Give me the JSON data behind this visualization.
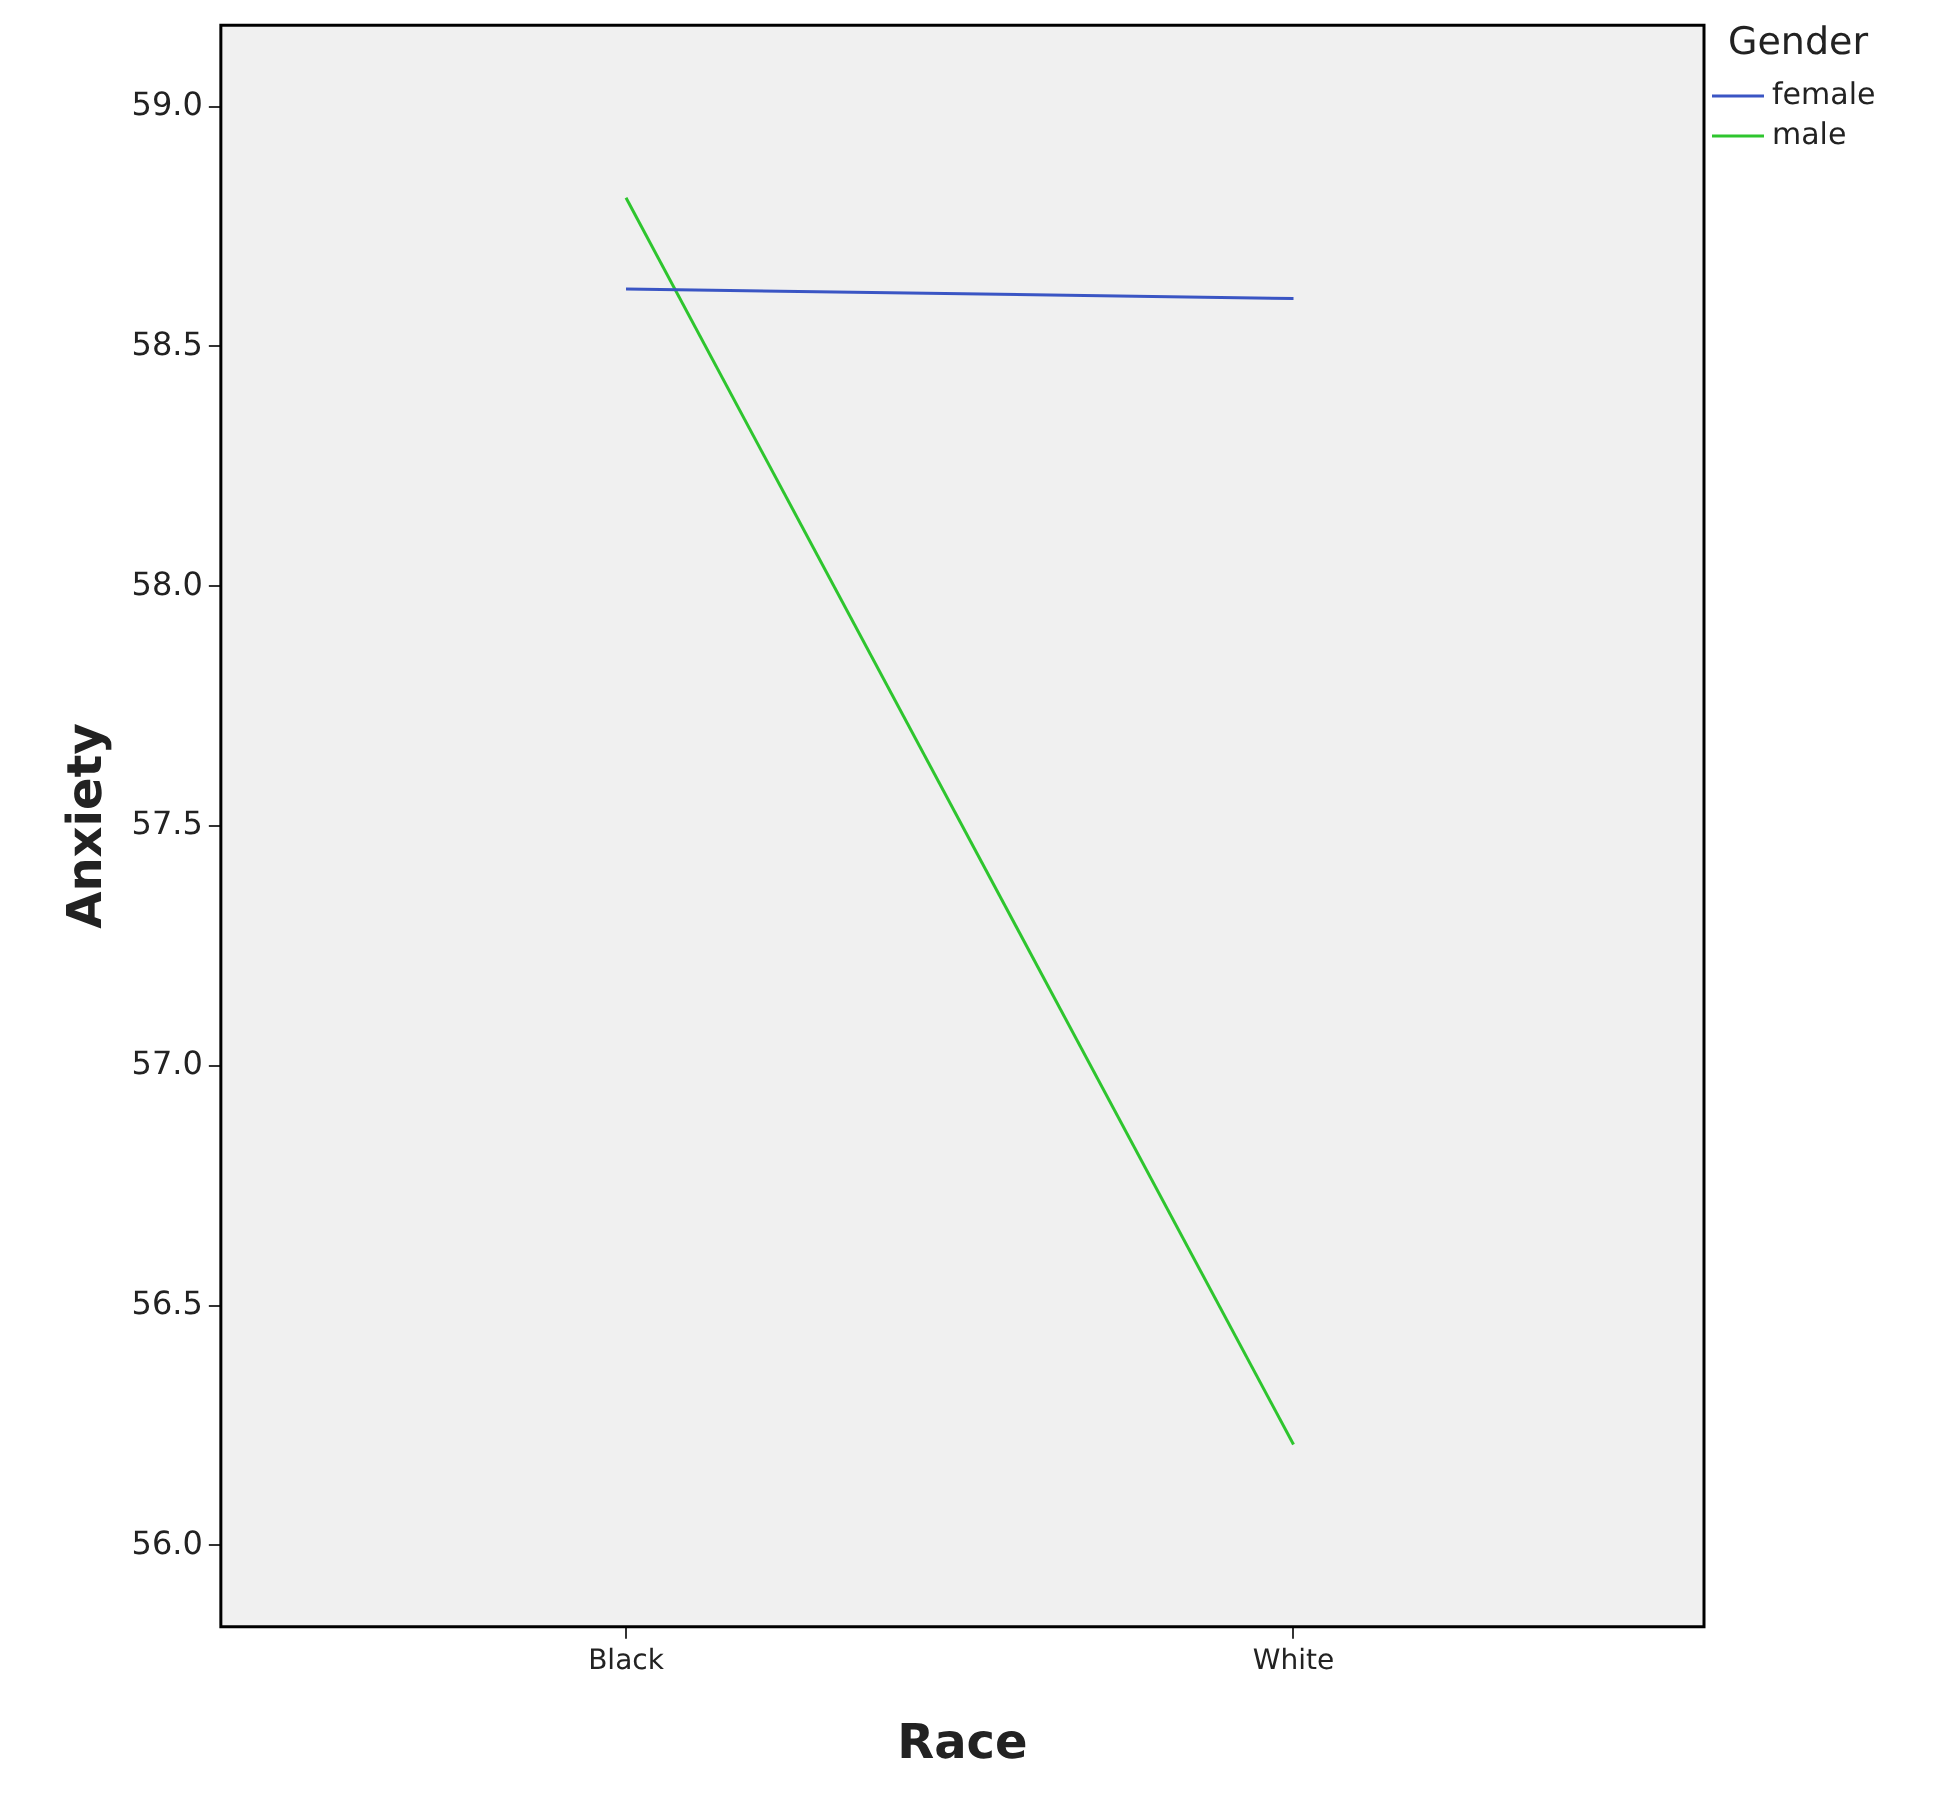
{
  "chart_data": {
    "type": "line",
    "xlabel": "Race",
    "ylabel": "Anxiety",
    "legend_title": "Gender",
    "categories": [
      "Black",
      "White"
    ],
    "series": [
      {
        "name": "female",
        "color": "#3a55c4",
        "values": [
          58.62,
          58.6
        ]
      },
      {
        "name": "male",
        "color": "#2ec52e",
        "values": [
          58.81,
          56.21
        ]
      }
    ],
    "ylim": [
      55.83,
      59.17
    ],
    "yticks": [
      {
        "value": 56,
        "label": "56.0"
      },
      {
        "value": 56.5,
        "label": "56.5"
      },
      {
        "value": 57,
        "label": "57.0"
      },
      {
        "value": 57.5,
        "label": "57.5"
      },
      {
        "value": 58,
        "label": "58.0"
      },
      {
        "value": 58.5,
        "label": "58.5"
      },
      {
        "value": 59,
        "label": "59.0"
      }
    ],
    "grid": false,
    "legend": "top right",
    "marker": "none",
    "line_style": "solid"
  }
}
